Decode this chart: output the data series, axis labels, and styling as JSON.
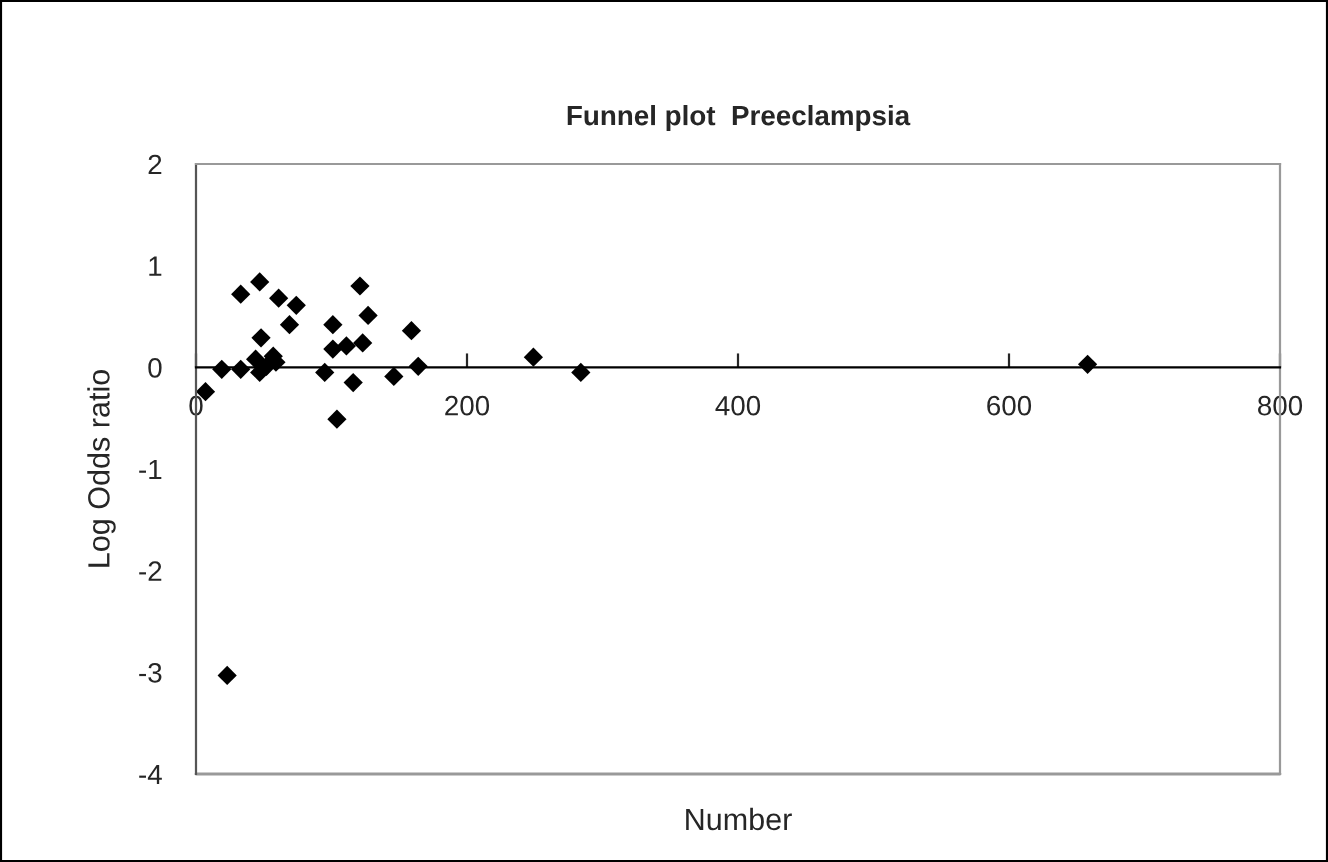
{
  "chart_data": {
    "type": "scatter",
    "title": "Funnel plot  Preeclampsia",
    "xlabel": "Number",
    "ylabel": "Log Odds ratio",
    "x": [
      7,
      19,
      33,
      33,
      47,
      48,
      44,
      47,
      52,
      57,
      59,
      61,
      74,
      69,
      95,
      101,
      101,
      104,
      111,
      116,
      121,
      123,
      127,
      146,
      159,
      164,
      249,
      284,
      658,
      23
    ],
    "values": [
      -0.24,
      -0.02,
      0.72,
      -0.02,
      0.84,
      0.29,
      0.08,
      -0.05,
      0.01,
      0.11,
      0.05,
      0.68,
      0.61,
      0.42,
      -0.05,
      0.42,
      0.18,
      -0.51,
      0.21,
      -0.15,
      0.8,
      0.24,
      0.51,
      -0.09,
      0.36,
      0.01,
      0.1,
      -0.05,
      0.03,
      -3.03
    ],
    "color": "#000000",
    "marker": "diamond",
    "xlim": [
      0,
      800
    ],
    "xticks": [
      0,
      200,
      400,
      600,
      800
    ],
    "ylim": [
      -4,
      2
    ],
    "yticks": [
      -4,
      -3,
      -2,
      -1,
      0,
      1,
      2
    ],
    "grid": false,
    "legend": false
  }
}
